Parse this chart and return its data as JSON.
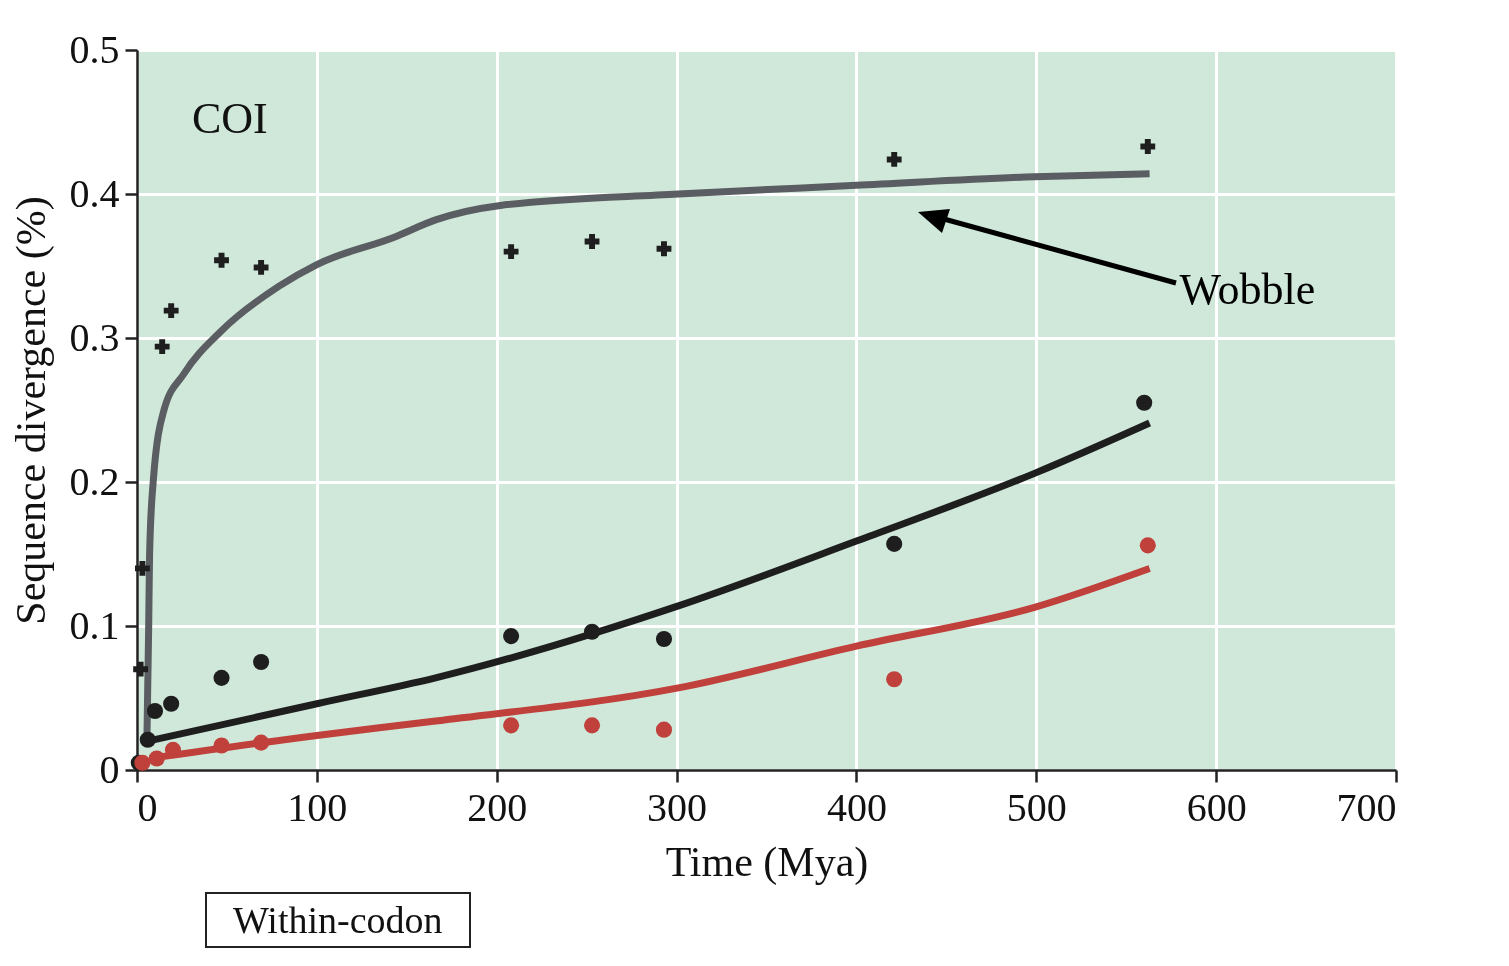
{
  "chart_data": {
    "type": "scatter",
    "xlabel": "Time (Mya)",
    "ylabel": "Sequence divergence (%)",
    "xlim": [
      0,
      700
    ],
    "ylim": [
      0,
      0.5
    ],
    "xticks": [
      0,
      100,
      200,
      300,
      400,
      500,
      600,
      700
    ],
    "yticks": [
      0,
      0.1,
      0.2,
      0.3,
      0.4,
      0.5
    ],
    "grid": true,
    "annotations": [
      "COI",
      "Wobble",
      "Within-codon"
    ],
    "series": [
      {
        "type": "line",
        "color": "#5a5d61",
        "x": [
          5.5,
          6.5,
          7,
          9,
          15,
          26,
          47,
          79,
          100,
          143,
          166,
          202,
          301,
          400,
          499,
          563
        ],
        "values": [
          0.02,
          0.1,
          0.15,
          0.2,
          0.25,
          0.275,
          0.305,
          0.336,
          0.351,
          0.37,
          0.382,
          0.392,
          0.4,
          0.406,
          0.412,
          0.414
        ]
      },
      {
        "type": "line",
        "color": "#1e1e1e",
        "x": [
          6,
          100,
          166,
          301,
          400,
          499,
          563
        ],
        "values": [
          0.02,
          0.046,
          0.064,
          0.114,
          0.159,
          0.206,
          0.241
        ]
      },
      {
        "type": "line",
        "color": "#c0403c",
        "x": [
          7,
          100,
          166,
          301,
          400,
          499,
          563
        ],
        "values": [
          0.008,
          0.024,
          0.034,
          0.057,
          0.086,
          0.113,
          0.14
        ]
      },
      {
        "type": "scatter",
        "marker": "cross",
        "color": "#1e1e1e",
        "x": [
          2,
          3,
          14,
          19,
          47,
          69,
          208,
          253,
          293,
          421,
          562
        ],
        "values": [
          0.07,
          0.14,
          0.294,
          0.319,
          0.354,
          0.349,
          0.36,
          0.367,
          0.362,
          0.424,
          0.433
        ]
      },
      {
        "type": "scatter",
        "marker": "circle",
        "color": "#1e1e1e",
        "x": [
          1,
          6,
          10,
          19,
          47,
          69,
          208,
          253,
          293,
          421,
          560
        ],
        "values": [
          0.005,
          0.021,
          0.041,
          0.046,
          0.064,
          0.075,
          0.093,
          0.096,
          0.091,
          0.157,
          0.255
        ]
      },
      {
        "type": "scatter",
        "marker": "circle",
        "color": "#c0403c",
        "x": [
          3,
          11,
          20,
          47,
          69,
          208,
          253,
          293,
          421,
          562
        ],
        "values": [
          0.005,
          0.008,
          0.014,
          0.017,
          0.019,
          0.031,
          0.031,
          0.028,
          0.063,
          0.156
        ]
      }
    ]
  }
}
